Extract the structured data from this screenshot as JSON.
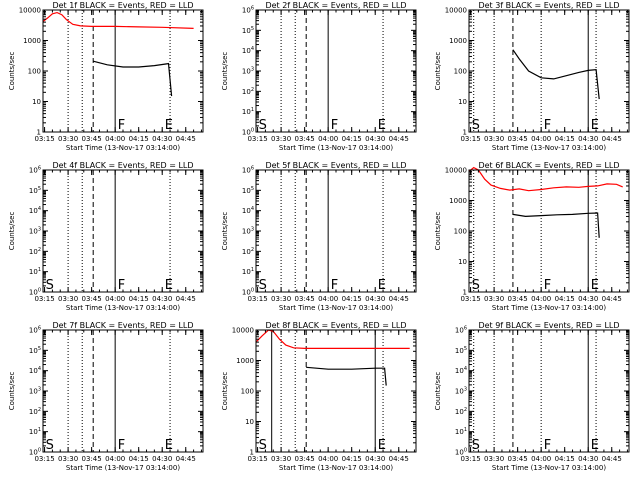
{
  "chart_data": [
    {
      "type": "line",
      "title": "Det 1f BLACK = Events, RED = LLD",
      "xlabel": "Start Time (13-Nov-17 03:14:00)",
      "ylabel": "Counts/sec",
      "yscale": "log",
      "ylim": [
        1,
        10000
      ],
      "ytick_labels": [
        "1",
        "10",
        "100",
        "1000",
        "10000"
      ],
      "xlim": [
        "03:14",
        "04:56"
      ],
      "xtick_labels": [
        "03:15",
        "03:30",
        "03:45",
        "04:00",
        "04:15",
        "04:30",
        "04:45"
      ],
      "dotted_lines": [
        "03:30",
        "03:39",
        "04:35"
      ],
      "dashed_lines": [
        "03:46"
      ],
      "solid_lines": [
        "04:00"
      ],
      "markers": [
        {
          "label": "F",
          "time": "04:01"
        },
        {
          "label": "E",
          "time": "04:31"
        }
      ],
      "series": [
        {
          "color": "#ff0000",
          "points": [
            [
              "03:14",
              4200
            ],
            [
              "03:17",
              5500
            ],
            [
              "03:20",
              7500
            ],
            [
              "03:23",
              8200
            ],
            [
              "03:26",
              7000
            ],
            [
              "03:29",
              4800
            ],
            [
              "03:33",
              3400
            ],
            [
              "03:38",
              3000
            ],
            [
              "03:45",
              2900
            ],
            [
              "04:00",
              2900
            ],
            [
              "04:15",
              2800
            ],
            [
              "04:30",
              2700
            ],
            [
              "04:50",
              2500
            ]
          ]
        },
        {
          "color": "#000000",
          "points": [
            [
              "03:46",
              210
            ],
            [
              "03:55",
              160
            ],
            [
              "04:05",
              135
            ],
            [
              "04:15",
              135
            ],
            [
              "04:25",
              150
            ],
            [
              "04:34",
              175
            ],
            [
              "04:36",
              15
            ]
          ]
        }
      ]
    },
    {
      "type": "line",
      "title": "Det 2f BLACK = Events, RED = LLD",
      "xlabel": "Start Time (13-Nov-17 03:14:00)",
      "ylabel": "Counts/sec",
      "yscale": "log",
      "ylim": [
        1,
        1000000
      ],
      "ytick_labels": [
        "10^0",
        "10^1",
        "10^2",
        "10^3",
        "10^4",
        "10^5",
        "10^6"
      ],
      "xlim": [
        "03:14",
        "04:56"
      ],
      "xtick_labels": [
        "03:15",
        "03:30",
        "03:45",
        "04:00",
        "04:15",
        "04:30",
        "04:45"
      ],
      "dotted_lines": [
        "03:30",
        "03:39",
        "04:35"
      ],
      "dashed_lines": [
        "03:46"
      ],
      "solid_lines": [
        "04:00"
      ],
      "markers": [
        {
          "label": "S",
          "time": "03:15"
        },
        {
          "label": "F",
          "time": "04:01"
        },
        {
          "label": "E",
          "time": "04:31"
        }
      ],
      "series": []
    },
    {
      "type": "line",
      "title": "Det 3f BLACK = Events, RED = LLD",
      "xlabel": "Start Time (13-Nov-17 03:14:00)",
      "ylabel": "Counts/sec",
      "yscale": "log",
      "ylim": [
        1,
        10000
      ],
      "ytick_labels": [
        "1",
        "10",
        "100",
        "1000",
        "10000"
      ],
      "xlim": [
        "03:14",
        "04:56"
      ],
      "xtick_labels": [
        "03:15",
        "03:30",
        "03:45",
        "04:00",
        "04:15",
        "04:30",
        "04:45"
      ],
      "dotted_lines": [
        "03:17",
        "03:30",
        "04:00",
        "04:35"
      ],
      "dashed_lines": [
        "03:42"
      ],
      "solid_lines": [
        "04:30"
      ],
      "markers": [
        {
          "label": "S",
          "time": "03:15"
        },
        {
          "label": "F",
          "time": "04:01"
        },
        {
          "label": "E",
          "time": "04:31"
        }
      ],
      "series": [
        {
          "color": "#000000",
          "points": [
            [
              "03:42",
              500
            ],
            [
              "03:46",
              250
            ],
            [
              "03:52",
              100
            ],
            [
              "04:00",
              60
            ],
            [
              "04:08",
              55
            ],
            [
              "04:16",
              70
            ],
            [
              "04:24",
              90
            ],
            [
              "04:30",
              105
            ],
            [
              "04:35",
              110
            ],
            [
              "04:37",
              12
            ]
          ]
        }
      ]
    },
    {
      "type": "line",
      "title": "Det 4f BLACK = Events, RED = LLD",
      "xlabel": "Start Time (13-Nov-17 03:14:00)",
      "ylabel": "Counts/sec",
      "yscale": "log",
      "ylim": [
        1,
        1000000
      ],
      "ytick_labels": [
        "10^0",
        "10^1",
        "10^2",
        "10^3",
        "10^4",
        "10^5",
        "10^6"
      ],
      "xlim": [
        "03:14",
        "04:56"
      ],
      "xtick_labels": [
        "03:15",
        "03:30",
        "03:45",
        "04:00",
        "04:15",
        "04:30",
        "04:45"
      ],
      "dotted_lines": [
        "03:30",
        "03:39",
        "04:35"
      ],
      "dashed_lines": [
        "03:46"
      ],
      "solid_lines": [
        "04:00"
      ],
      "markers": [
        {
          "label": "S",
          "time": "03:15"
        },
        {
          "label": "F",
          "time": "04:01"
        },
        {
          "label": "E",
          "time": "04:31"
        }
      ],
      "series": []
    },
    {
      "type": "line",
      "title": "Det 5f BLACK = Events, RED = LLD",
      "xlabel": "Start Time (13-Nov-17 03:14:00)",
      "ylabel": "Counts/sec",
      "yscale": "log",
      "ylim": [
        1,
        1000000
      ],
      "ytick_labels": [
        "10^0",
        "10^1",
        "10^2",
        "10^3",
        "10^4",
        "10^5",
        "10^6"
      ],
      "xlim": [
        "03:14",
        "04:56"
      ],
      "xtick_labels": [
        "03:15",
        "03:30",
        "03:45",
        "04:00",
        "04:15",
        "04:30",
        "04:45"
      ],
      "dotted_lines": [
        "03:30",
        "03:39",
        "04:35"
      ],
      "dashed_lines": [
        "03:46"
      ],
      "solid_lines": [
        "04:00"
      ],
      "markers": [
        {
          "label": "S",
          "time": "03:15"
        },
        {
          "label": "F",
          "time": "04:01"
        },
        {
          "label": "E",
          "time": "04:31"
        }
      ],
      "series": []
    },
    {
      "type": "line",
      "title": "Det 6f BLACK = Events, RED = LLD",
      "xlabel": "Start Time (13-Nov-17 03:14:00)",
      "ylabel": "Counts/sec",
      "yscale": "log",
      "ylim": [
        1,
        10000
      ],
      "ytick_labels": [
        "1",
        "10",
        "100",
        "1000",
        "10000"
      ],
      "xlim": [
        "03:14",
        "04:56"
      ],
      "xtick_labels": [
        "03:15",
        "03:30",
        "03:45",
        "04:00",
        "04:15",
        "04:30",
        "04:45"
      ],
      "dotted_lines": [
        "03:17",
        "03:30",
        "04:00",
        "04:35"
      ],
      "dashed_lines": [
        "03:42"
      ],
      "solid_lines": [
        "04:30"
      ],
      "markers": [
        {
          "label": "S",
          "time": "03:15"
        },
        {
          "label": "F",
          "time": "04:01"
        },
        {
          "label": "E",
          "time": "04:31"
        }
      ],
      "series": [
        {
          "color": "#ff0000",
          "points": [
            [
              "03:14",
              9000
            ],
            [
              "03:17",
              12000
            ],
            [
              "03:20",
              10000
            ],
            [
              "03:24",
              5000
            ],
            [
              "03:28",
              3200
            ],
            [
              "03:34",
              2500
            ],
            [
              "03:40",
              2200
            ],
            [
              "03:46",
              2400
            ],
            [
              "03:52",
              2100
            ],
            [
              "04:00",
              2300
            ],
            [
              "04:08",
              2600
            ],
            [
              "04:16",
              2800
            ],
            [
              "04:24",
              2700
            ],
            [
              "04:30",
              2900
            ],
            [
              "04:36",
              3000
            ],
            [
              "04:42",
              3500
            ],
            [
              "04:48",
              3400
            ],
            [
              "04:52",
              2800
            ]
          ]
        },
        {
          "color": "#000000",
          "points": [
            [
              "03:42",
              350
            ],
            [
              "03:50",
              300
            ],
            [
              "04:00",
              320
            ],
            [
              "04:10",
              340
            ],
            [
              "04:20",
              350
            ],
            [
              "04:30",
              380
            ],
            [
              "04:36",
              390
            ],
            [
              "04:37",
              60
            ]
          ]
        }
      ]
    },
    {
      "type": "line",
      "title": "Det 7f BLACK = Events, RED = LLD",
      "xlabel": "Start Time (13-Nov-17 03:14:00)",
      "ylabel": "Counts/sec",
      "yscale": "log",
      "ylim": [
        1,
        1000000
      ],
      "ytick_labels": [
        "10^0",
        "10^1",
        "10^2",
        "10^3",
        "10^4",
        "10^5",
        "10^6"
      ],
      "xlim": [
        "03:14",
        "04:56"
      ],
      "xtick_labels": [
        "03:15",
        "03:30",
        "03:45",
        "04:00",
        "04:15",
        "04:30",
        "04:45"
      ],
      "dotted_lines": [
        "03:30",
        "03:39",
        "04:35"
      ],
      "dashed_lines": [
        "03:46"
      ],
      "solid_lines": [
        "04:00"
      ],
      "markers": [
        {
          "label": "S",
          "time": "03:15"
        },
        {
          "label": "F",
          "time": "04:01"
        },
        {
          "label": "E",
          "time": "04:31"
        }
      ],
      "series": []
    },
    {
      "type": "line",
      "title": "Det 8f BLACK = Events, RED = LLD",
      "xlabel": "Start Time (13-Nov-17 03:14:00)",
      "ylabel": "Counts/sec",
      "yscale": "log",
      "ylim": [
        1,
        10000
      ],
      "ytick_labels": [
        "1",
        "10",
        "100",
        "1000",
        "10000"
      ],
      "xlim": [
        "03:14",
        "04:56"
      ],
      "xtick_labels": [
        "03:15",
        "03:30",
        "03:45",
        "04:00",
        "04:15",
        "04:30",
        "04:45"
      ],
      "dotted_lines": [
        "03:30",
        "03:39",
        "04:35"
      ],
      "dashed_lines": [
        "03:46"
      ],
      "solid_lines": [
        "03:24",
        "04:30"
      ],
      "markers": [
        {
          "label": "S",
          "time": "03:15"
        },
        {
          "label": "E",
          "time": "04:31"
        }
      ],
      "series": [
        {
          "color": "#ff0000",
          "points": [
            [
              "03:14",
              4000
            ],
            [
              "03:18",
              6500
            ],
            [
              "03:22",
              10000
            ],
            [
              "03:25",
              9000
            ],
            [
              "03:29",
              5000
            ],
            [
              "03:33",
              3200
            ],
            [
              "03:38",
              2600
            ],
            [
              "03:45",
              2500
            ],
            [
              "04:00",
              2500
            ],
            [
              "04:30",
              2500
            ],
            [
              "04:52",
              2500
            ]
          ]
        },
        {
          "color": "#000000",
          "points": [
            [
              "03:46",
              600
            ],
            [
              "04:00",
              520
            ],
            [
              "04:15",
              520
            ],
            [
              "04:30",
              560
            ],
            [
              "04:36",
              560
            ],
            [
              "04:37",
              150
            ]
          ]
        }
      ]
    },
    {
      "type": "line",
      "title": "Det 9f BLACK = Events, RED = LLD",
      "xlabel": "Start Time (13-Nov-17 03:14:00)",
      "ylabel": "Counts/sec",
      "yscale": "log",
      "ylim": [
        1,
        1000000
      ],
      "ytick_labels": [
        "10^0",
        "10^1",
        "10^2",
        "10^3",
        "10^4",
        "10^5",
        "10^6"
      ],
      "xlim": [
        "03:14",
        "04:56"
      ],
      "xtick_labels": [
        "03:15",
        "03:30",
        "03:45",
        "04:00",
        "04:15",
        "04:30",
        "04:45"
      ],
      "dotted_lines": [
        "03:17",
        "03:30",
        "04:00",
        "04:35"
      ],
      "dashed_lines": [
        "03:42"
      ],
      "solid_lines": [
        "04:30"
      ],
      "markers": [
        {
          "label": "S",
          "time": "03:15"
        },
        {
          "label": "F",
          "time": "04:01"
        },
        {
          "label": "E",
          "time": "04:31"
        }
      ],
      "series": []
    }
  ]
}
